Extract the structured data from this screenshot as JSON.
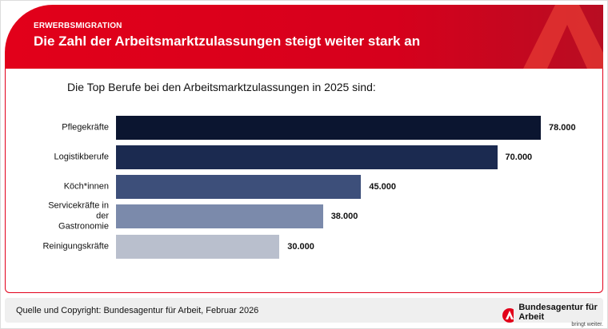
{
  "header": {
    "kicker": "ERWERBSMIGRATION",
    "title": "Die Zahl der Arbeitsmarktzulassungen steigt weiter stark an"
  },
  "chart_data": {
    "type": "bar",
    "orientation": "horizontal",
    "title": "Die Top Berufe bei den Arbeitsmarktzulassungen in 2025 sind:",
    "categories": [
      "Pflegekräfte",
      "Logistikberufe",
      "Köch*innen",
      "Servicekräfte in der Gastronomie",
      "Reinigungskräfte"
    ],
    "values": [
      78000,
      70000,
      45000,
      38000,
      30000
    ],
    "labels": [
      "78.000",
      "70.000",
      "45.000",
      "38.000",
      "30.000"
    ],
    "colors": [
      "#0b1530",
      "#1b2a50",
      "#3d4f7a",
      "#7b8aab",
      "#b9bfcd"
    ],
    "xlim": [
      0,
      78000
    ],
    "grid": false
  },
  "footer": {
    "source": "Quelle und Copyright: Bundesagentur für Arbeit, Februar 2026",
    "brand": "Bundesagentur für Arbeit",
    "tagline": "bringt weiter."
  }
}
